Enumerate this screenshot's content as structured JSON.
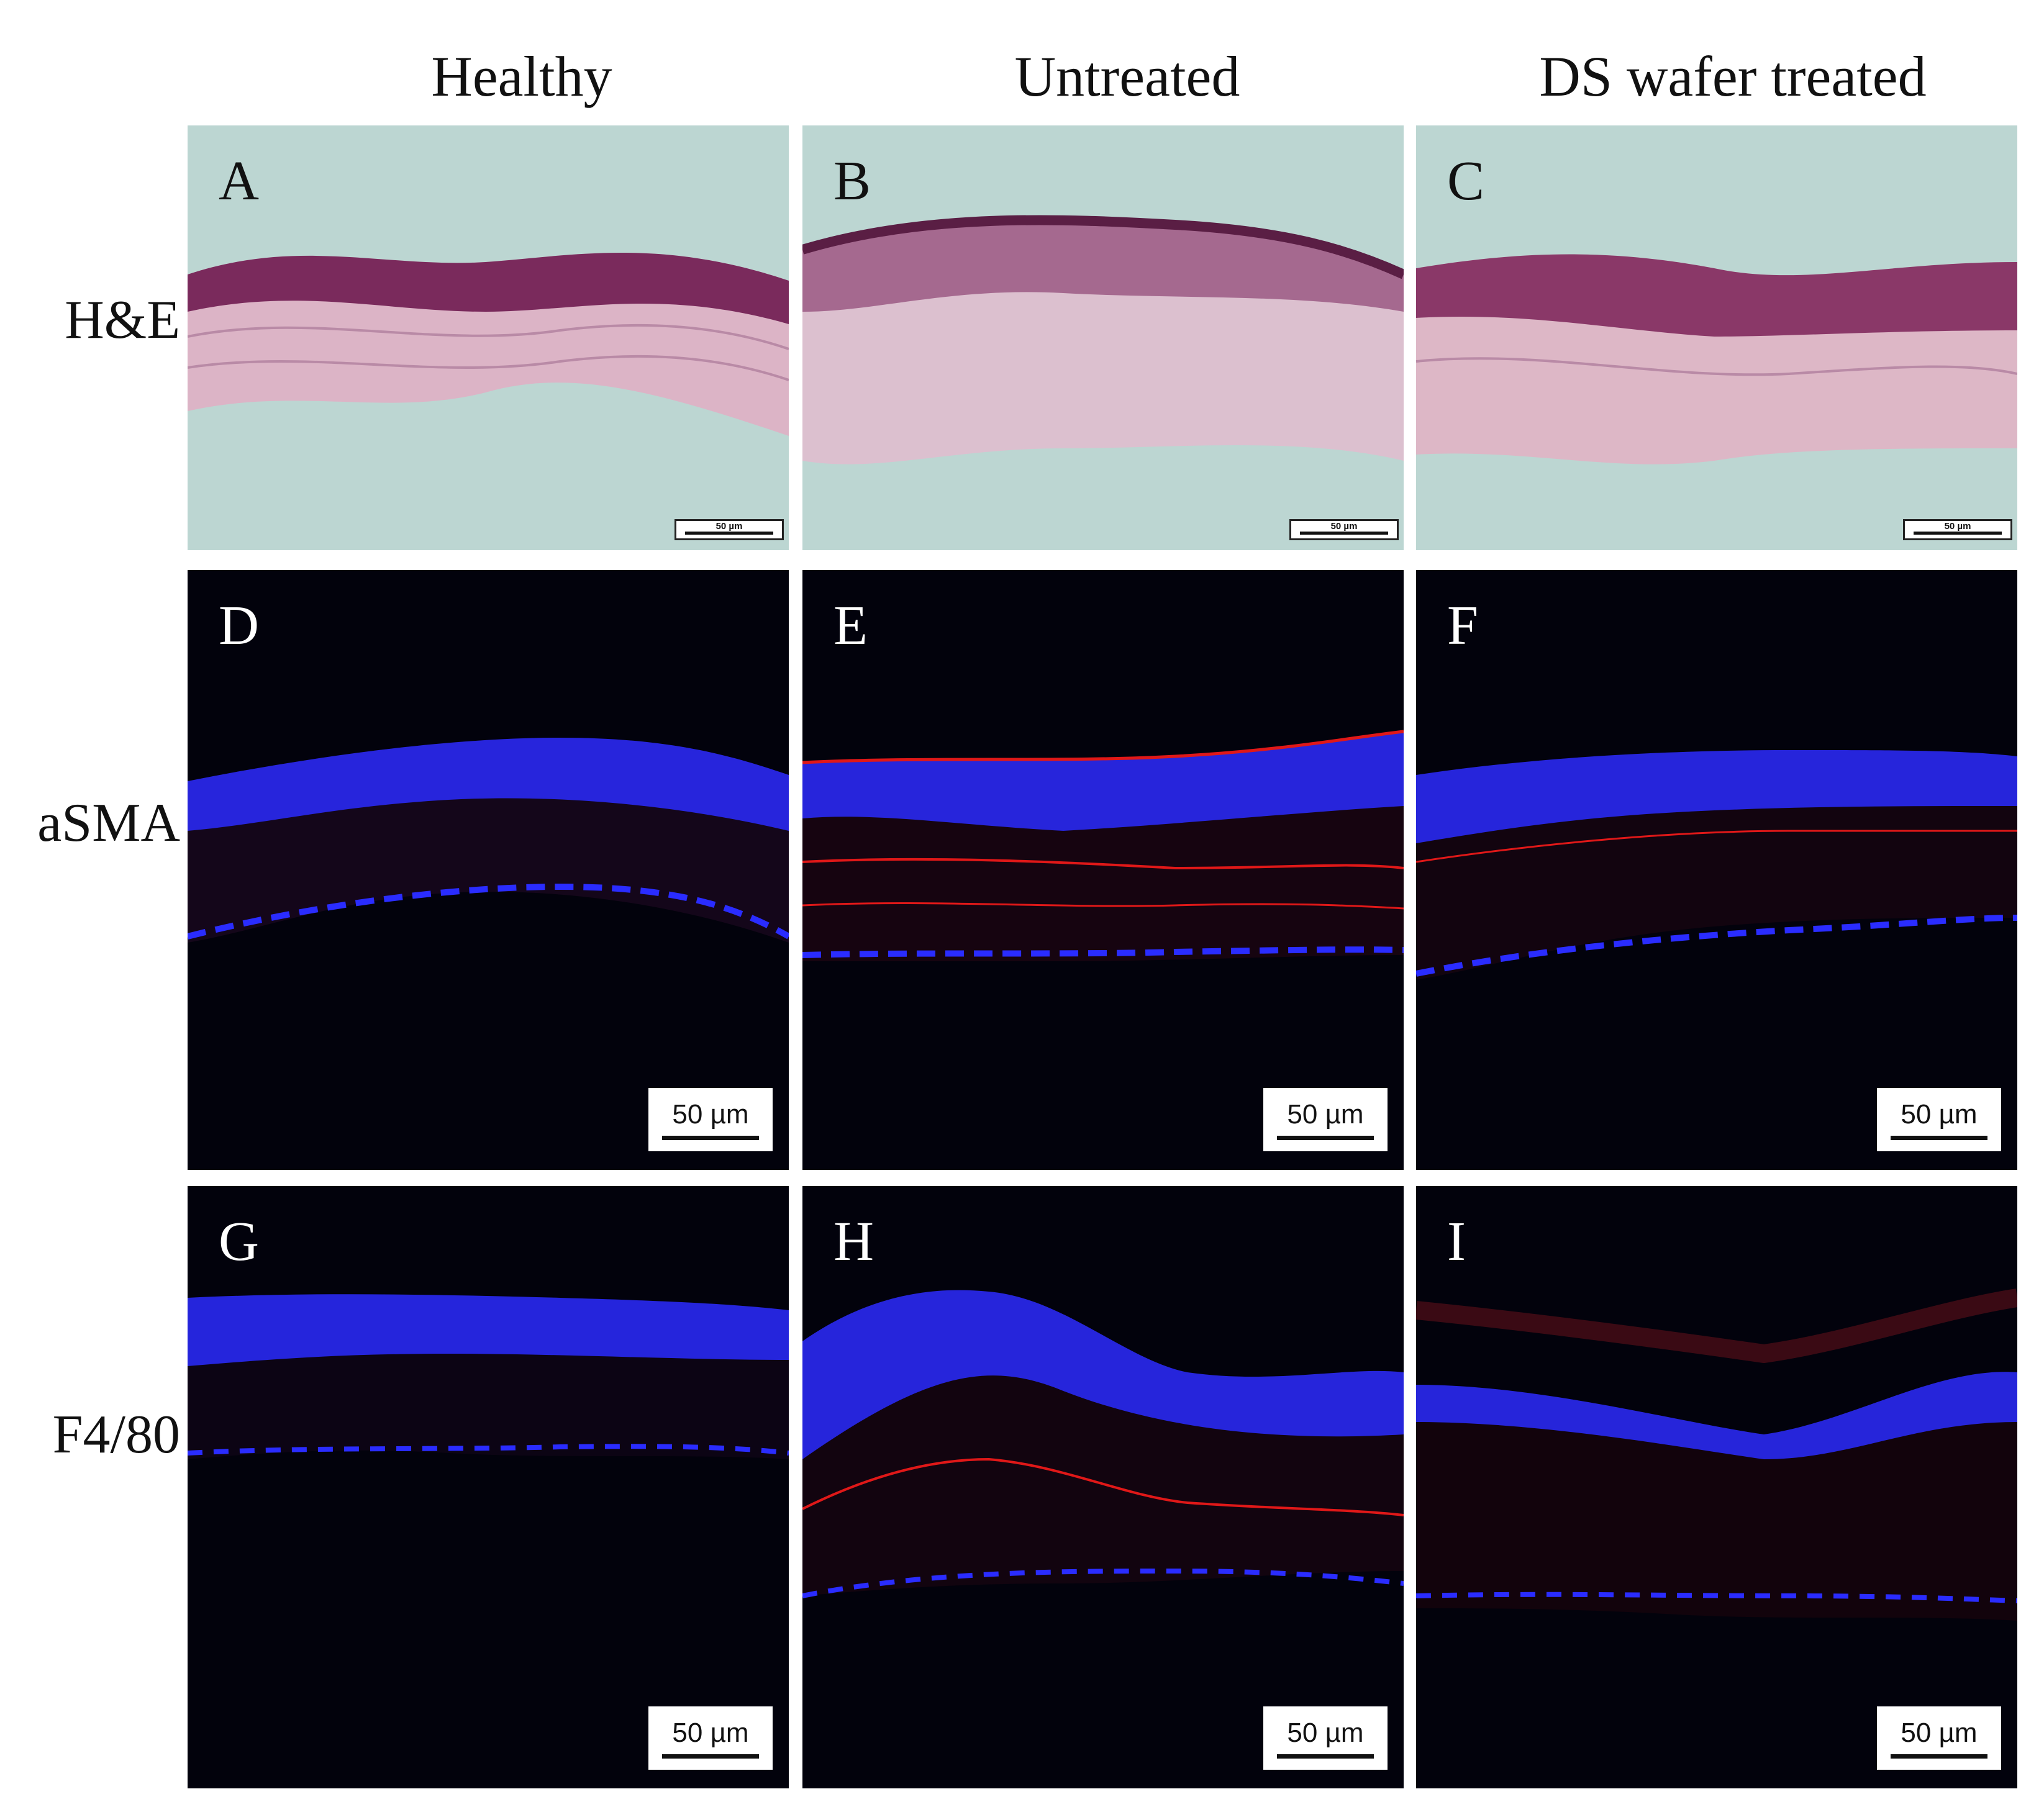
{
  "columns": [
    "Healthy",
    "Untreated",
    "DS wafer treated"
  ],
  "rows": [
    "H&E",
    "aSMA",
    "F4/80"
  ],
  "panels": [
    {
      "letter": "A",
      "stain": "H&E",
      "group": "Healthy",
      "scale": "50 µm"
    },
    {
      "letter": "B",
      "stain": "H&E",
      "group": "Untreated",
      "scale": "50 µm"
    },
    {
      "letter": "C",
      "stain": "H&E",
      "group": "DS wafer treated",
      "scale": "50 µm"
    },
    {
      "letter": "D",
      "stain": "aSMA",
      "group": "Healthy",
      "scale": "50 µm"
    },
    {
      "letter": "E",
      "stain": "aSMA",
      "group": "Untreated",
      "scale": "50 µm"
    },
    {
      "letter": "F",
      "stain": "aSMA",
      "group": "DS wafer treated",
      "scale": "50 µm"
    },
    {
      "letter": "G",
      "stain": "F4/80",
      "group": "Healthy",
      "scale": "50 µm"
    },
    {
      "letter": "H",
      "stain": "F4/80",
      "group": "Untreated",
      "scale": "50 µm"
    },
    {
      "letter": "I",
      "stain": "F4/80",
      "group": "DS wafer treated",
      "scale": "50 µm"
    }
  ],
  "colors": {
    "he_background": "#bcd6d2",
    "he_stroma": "#dcb4c6",
    "he_epithelium": "#7a2a5c",
    "fl_background": "#02020c",
    "nuclei": "#2a2cff",
    "actin_signal": "#e01818"
  }
}
